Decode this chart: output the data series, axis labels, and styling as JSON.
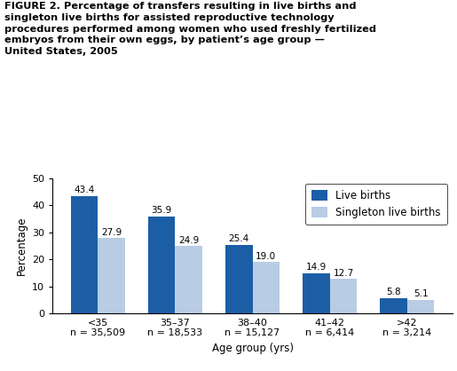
{
  "title_lines": [
    "FIGURE 2. Percentage of transfers resulting in live births and",
    "singleton live births for assisted reproductive technology",
    "procedures performed among women who used freshly fertilized",
    "embryos from their own eggs, by patient’s age group —",
    "United States, 2005"
  ],
  "categories": [
    "<35",
    "35–37",
    "38–40",
    "41–42",
    ">42"
  ],
  "n_labels": [
    "n = 35,509",
    "n = 18,533",
    "n = 15,127",
    "n = 6,414",
    "n = 3,214"
  ],
  "live_births": [
    43.4,
    35.9,
    25.4,
    14.9,
    5.8
  ],
  "singleton_births": [
    27.9,
    24.9,
    19.0,
    12.7,
    5.1
  ],
  "live_births_color": "#1B5EA6",
  "singleton_births_color": "#B8CCE4",
  "ylabel": "Percentage",
  "xlabel": "Age group (yrs)",
  "ylim": [
    0,
    50
  ],
  "yticks": [
    0,
    10,
    20,
    30,
    40,
    50
  ],
  "legend_live": "Live births",
  "legend_singleton": "Singleton live births",
  "bar_width": 0.35,
  "title_fontsize": 8.2,
  "axis_fontsize": 8.5,
  "tick_fontsize": 8.0,
  "value_fontsize": 7.5,
  "legend_fontsize": 8.5
}
